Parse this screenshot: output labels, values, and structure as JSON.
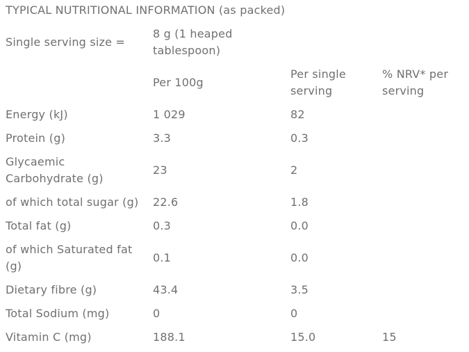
{
  "title": "TYPICAL NUTRITIONAL INFORMATION (as packed)",
  "serving": {
    "label": "Single serving size =",
    "value_line1": "8 g (1 heaped",
    "value_line2": "tablespoon)"
  },
  "headers": {
    "per100_label": "Per 100g",
    "per_serving_line1": "Per single",
    "per_serving_line2": "serving",
    "nrv_line1": "% NRV* per",
    "nrv_line2": "serving"
  },
  "rows": [
    {
      "name": "Energy (kJ)",
      "per100": "1 029",
      "serving": "82",
      "nrv": ""
    },
    {
      "name": "Protein (g)",
      "per100": "3.3",
      "serving": "0.3",
      "nrv": ""
    },
    {
      "name_line1": "Glycaemic",
      "name_line2": "Carbohydrate (g)",
      "per100": "23",
      "serving": "2",
      "nrv": ""
    },
    {
      "name": "of which total sugar (g)",
      "per100": "22.6",
      "serving": "1.8",
      "nrv": ""
    },
    {
      "name": "Total fat (g)",
      "per100": "0.3",
      "serving": "0.0",
      "nrv": ""
    },
    {
      "name_line1": "of which Saturated fat",
      "name_line2": "(g)",
      "per100": "0.1",
      "serving": "0.0",
      "nrv": ""
    },
    {
      "name": "Dietary fibre (g)",
      "per100": "43.4",
      "serving": "3.5",
      "nrv": ""
    },
    {
      "name": "Total Sodium (mg)",
      "per100": "0",
      "serving": "0",
      "nrv": ""
    },
    {
      "name": "Vitamin C (mg)",
      "per100": "188.1",
      "serving": "15.0",
      "nrv": "15"
    }
  ]
}
